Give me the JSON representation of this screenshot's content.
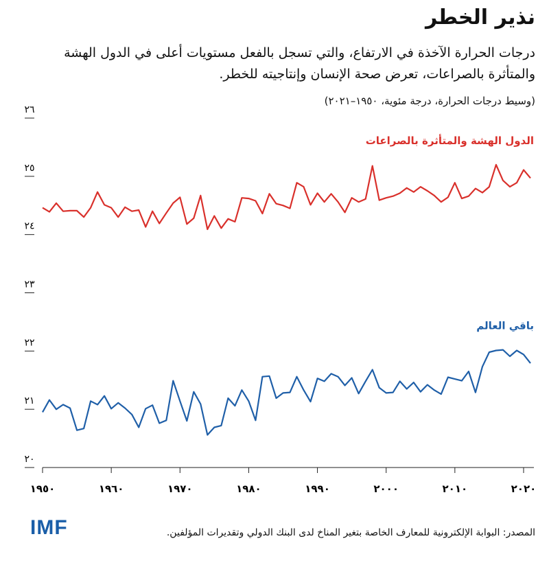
{
  "chart_data": {
    "type": "line",
    "title": "نذير الخطر",
    "subtitle": "درجات الحرارة الآخذة في الارتفاع، والتي تسجل بالفعل مستويات أعلى في الدول الهشة والمتأثرة بالصراعات، تعرض صحة الإنسان وإنتاجيته للخطر.",
    "note": "(وسيط درجات الحرارة، درجة مئوية، ١٩٥٠–٢٠٢١)",
    "source": "المصدر: البوابة الإلكترونية للمعارف الخاصة بتغير المناخ لدى البنك الدولي وتقديرات المؤلفين.",
    "logo": "IMF",
    "x": [
      1950,
      1951,
      1952,
      1953,
      1954,
      1955,
      1956,
      1957,
      1958,
      1959,
      1960,
      1961,
      1962,
      1963,
      1964,
      1965,
      1966,
      1967,
      1968,
      1969,
      1970,
      1971,
      1972,
      1973,
      1974,
      1975,
      1976,
      1977,
      1978,
      1979,
      1980,
      1981,
      1982,
      1983,
      1984,
      1985,
      1986,
      1987,
      1988,
      1989,
      1990,
      1991,
      1992,
      1993,
      1994,
      1995,
      1996,
      1997,
      1998,
      1999,
      2000,
      2001,
      2002,
      2003,
      2004,
      2005,
      2006,
      2007,
      2008,
      2009,
      2010,
      2011,
      2012,
      2013,
      2014,
      2015,
      2016,
      2017,
      2018,
      2019,
      2020,
      2021
    ],
    "series": [
      {
        "name": "الدول الهشة والمتأثرة بالصراعات",
        "color": "#d9302b",
        "values": [
          24.46,
          24.39,
          24.54,
          24.4,
          24.41,
          24.41,
          24.3,
          24.46,
          24.73,
          24.51,
          24.46,
          24.3,
          24.47,
          24.4,
          24.42,
          24.13,
          24.4,
          24.19,
          24.37,
          24.54,
          24.64,
          24.18,
          24.28,
          24.67,
          24.09,
          24.32,
          24.11,
          24.27,
          24.22,
          24.63,
          24.62,
          24.58,
          24.36,
          24.7,
          24.53,
          24.5,
          24.45,
          24.89,
          24.82,
          24.51,
          24.71,
          24.56,
          24.7,
          24.56,
          24.38,
          24.63,
          24.56,
          24.61,
          25.18,
          24.59,
          24.63,
          24.66,
          24.71,
          24.8,
          24.73,
          24.82,
          24.75,
          24.67,
          24.56,
          24.64,
          24.89,
          24.62,
          24.66,
          24.79,
          24.72,
          24.82,
          25.2,
          24.93,
          24.82,
          24.89,
          25.11,
          24.97
        ]
      },
      {
        "name": "باقي العالم",
        "color": "#1f5fa8",
        "values": [
          20.95,
          21.16,
          21.0,
          21.08,
          21.02,
          20.64,
          20.67,
          21.14,
          21.08,
          21.23,
          21.01,
          21.11,
          21.02,
          20.91,
          20.69,
          21.01,
          21.07,
          20.76,
          20.81,
          21.49,
          21.14,
          20.8,
          21.3,
          21.09,
          20.56,
          20.69,
          20.72,
          21.19,
          21.06,
          21.33,
          21.14,
          20.81,
          21.56,
          21.57,
          21.19,
          21.28,
          21.29,
          21.56,
          21.33,
          21.13,
          21.53,
          21.48,
          21.61,
          21.56,
          21.41,
          21.54,
          21.27,
          21.48,
          21.68,
          21.37,
          21.28,
          21.29,
          21.48,
          21.35,
          21.46,
          21.3,
          21.42,
          21.33,
          21.26,
          21.55,
          21.52,
          21.49,
          21.65,
          21.29,
          21.73,
          21.98,
          22.01,
          22.02,
          21.91,
          22.01,
          21.94,
          21.79
        ]
      }
    ],
    "xlim": [
      1950,
      2021.5
    ],
    "ylim": [
      20,
      26
    ],
    "xticks": [
      {
        "value": 1950,
        "label": "١٩٥٠"
      },
      {
        "value": 1960,
        "label": "١٩٦٠"
      },
      {
        "value": 1970,
        "label": "١٩٧٠"
      },
      {
        "value": 1980,
        "label": "١٩٨٠"
      },
      {
        "value": 1990,
        "label": "١٩٩٠"
      },
      {
        "value": 2000,
        "label": "٢٠٠٠"
      },
      {
        "value": 2010,
        "label": "٢٠١٠"
      },
      {
        "value": 2020,
        "label": "٢٠٢٠"
      }
    ],
    "yticks": [
      {
        "value": 20,
        "label": "٢٠"
      },
      {
        "value": 21,
        "label": "٢١"
      },
      {
        "value": 22,
        "label": "٢٢"
      },
      {
        "value": 23,
        "label": "٢٣"
      },
      {
        "value": 24,
        "label": "٢٤"
      },
      {
        "value": 25,
        "label": "٢٥"
      },
      {
        "value": 26,
        "label": "٢٦"
      }
    ],
    "grid": false
  }
}
